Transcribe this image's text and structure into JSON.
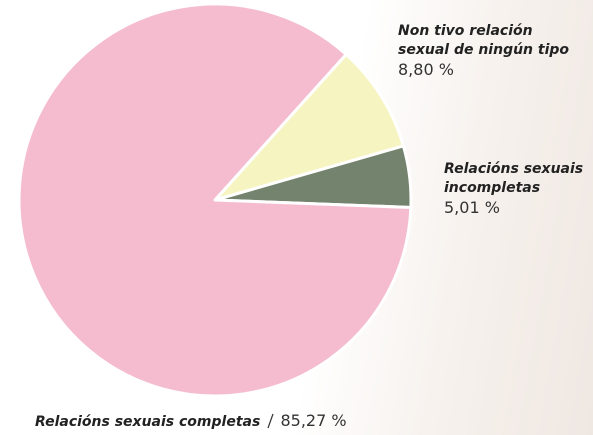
{
  "chart_data": {
    "type": "pie",
    "categories": [
      "Non tivo relación sexual de ningún tipo",
      "Relacións sexuais incompletas",
      "Relacións sexuais completas"
    ],
    "values": [
      8.8,
      5.01,
      85.27
    ],
    "value_labels": [
      "8,80 %",
      "5,01 %",
      "85,27 %"
    ],
    "colors": [
      "#f6f4c0",
      "#74836d",
      "#f5bcd0"
    ]
  }
}
